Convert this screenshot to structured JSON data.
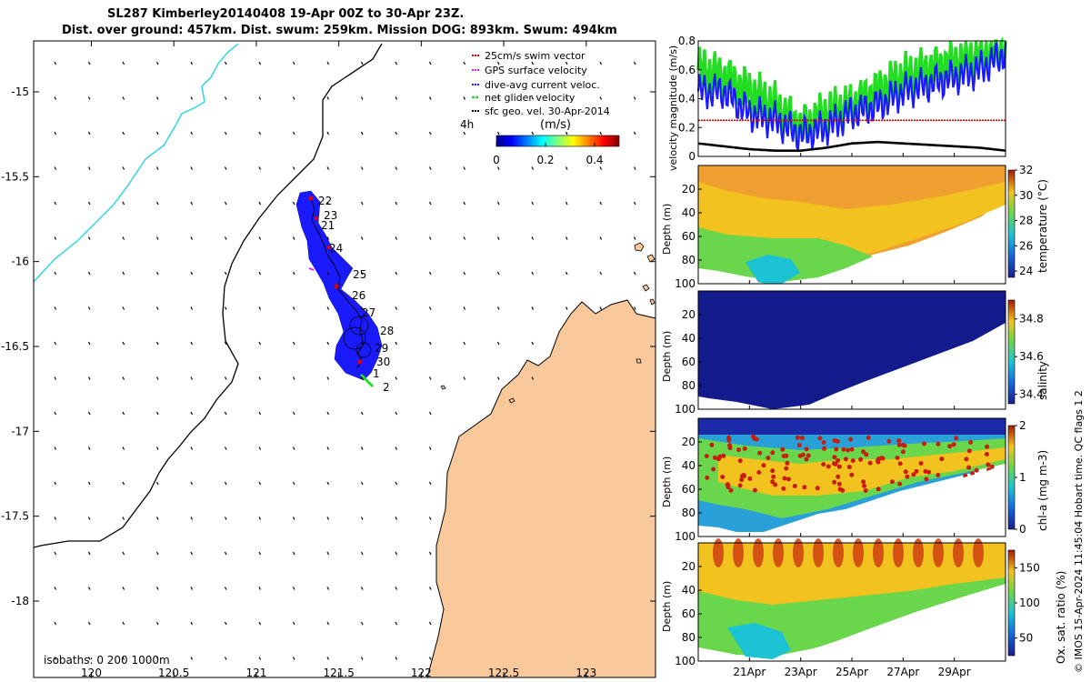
{
  "header": {
    "title_line1": "SL287 Kimberley20140408 19-Apr 00Z to 30-Apr 23Z.",
    "title_line2": "Dist. over ground: 457km. Dist. swum: 259km. Mission DOG: 893km. Swum: 494km"
  },
  "credit": "© IMOS 15-Apr-2024 11:45:04 Hobart time. QC flags 1  2",
  "colors": {
    "land": "#f9c89b",
    "track_patch": "#1a1aff",
    "cyan_isobath": "#33d6e0",
    "swim_vector": "#e00000",
    "gps_velocity": "#e020e0",
    "current": "#1a1aff",
    "net_velocity": "#22dd22",
    "sfc_geo": "#000000"
  },
  "chart_data": [
    {
      "type": "scatter",
      "name": "map",
      "xticks": [
        "120",
        "120.5",
        "121",
        "121.5",
        "122",
        "122.5",
        "123"
      ],
      "yticks": [
        "-15",
        "-15.5",
        "-16",
        "-16.5",
        "-17",
        "-17.5",
        "-18"
      ],
      "xlim": [
        119.65,
        123.42
      ],
      "ylim": [
        -18.45,
        -14.7
      ],
      "legend": [
        "25cm/s swim vector",
        "GPS surface velocity",
        "dive-avg current veloc.",
        "net glider velocity",
        "sfc geo. vel. 30-Apr-2014"
      ],
      "legend_position": "top-right",
      "colorbar_label": "(m/s)",
      "colorbar_ticks": [
        "0",
        "0.2",
        "0.4"
      ],
      "colorbar_range": [
        0,
        0.5
      ],
      "time_marker": "4h",
      "track_day_labels": [
        "22",
        "23",
        "21",
        "24",
        "25",
        "26",
        "27",
        "28",
        "29",
        "30",
        "1",
        "2"
      ],
      "isobaths_label": "isobaths: 0   200  1000m"
    },
    {
      "type": "line",
      "name": "velocity",
      "ylabel": "velocity magnitude (m/s)",
      "ylim": [
        0,
        0.8
      ],
      "yticks": [
        "0",
        "0.2",
        "0.4",
        "0.6",
        "0.8"
      ],
      "x_days": [
        19,
        20,
        21,
        22,
        23,
        24,
        25,
        26,
        27,
        28,
        29,
        30,
        31
      ],
      "series": [
        {
          "name": "net glider velocity",
          "color": "#22dd22",
          "values": [
            0.6,
            0.55,
            0.45,
            0.35,
            0.2,
            0.3,
            0.35,
            0.45,
            0.55,
            0.6,
            0.65,
            0.7,
            0.75
          ]
        },
        {
          "name": "dive-avg current veloc.",
          "color": "#1a1aff",
          "values": [
            0.45,
            0.45,
            0.3,
            0.25,
            0.15,
            0.2,
            0.3,
            0.35,
            0.45,
            0.5,
            0.55,
            0.6,
            0.72
          ]
        },
        {
          "name": "25cm/s swim vector",
          "color": "#e00000",
          "values": [
            0.25,
            0.25,
            0.25,
            0.25,
            0.25,
            0.25,
            0.25,
            0.25,
            0.25,
            0.25,
            0.25,
            0.25,
            0.25
          ]
        },
        {
          "name": "sfc geo. vel. 30-Apr-2014",
          "color": "#000000",
          "values": [
            0.09,
            0.07,
            0.05,
            0.04,
            0.04,
            0.06,
            0.09,
            0.1,
            0.09,
            0.08,
            0.07,
            0.06,
            0.04
          ]
        }
      ]
    },
    {
      "type": "heatmap",
      "name": "temperature",
      "ylabel": "Depth (m)",
      "yticks": [
        "20",
        "40",
        "60",
        "80",
        "100"
      ],
      "colorbar_label": "temperature (°C)",
      "colorbar_ticks": [
        "32",
        "30",
        "28",
        "26",
        "24"
      ],
      "colorbar_range": [
        23.5,
        32
      ]
    },
    {
      "type": "heatmap",
      "name": "salinity",
      "ylabel": "Depth (m)",
      "yticks": [
        "20",
        "40",
        "60",
        "80",
        "100"
      ],
      "colorbar_label": "salinity",
      "colorbar_ticks": [
        "34.8",
        "34.6",
        "34.4"
      ],
      "colorbar_range": [
        34.35,
        34.9
      ]
    },
    {
      "type": "heatmap",
      "name": "chla",
      "ylabel": "Depth (m)",
      "yticks": [
        "20",
        "40",
        "60",
        "80",
        "100"
      ],
      "colorbar_label": "chl-a (mg m-3)",
      "colorbar_ticks": [
        "2",
        "1",
        "0"
      ],
      "colorbar_range": [
        0,
        2
      ]
    },
    {
      "type": "heatmap",
      "name": "oxygen",
      "ylabel": "Depth (m)",
      "yticks": [
        "20",
        "40",
        "60",
        "80",
        "100"
      ],
      "xticks": [
        "21Apr",
        "23Apr",
        "25Apr",
        "27Apr",
        "29Apr"
      ],
      "colorbar_label": "Ox. sat. ratio (%)",
      "colorbar_ticks": [
        "150",
        "100",
        "50"
      ],
      "colorbar_range": [
        25,
        175
      ]
    }
  ]
}
